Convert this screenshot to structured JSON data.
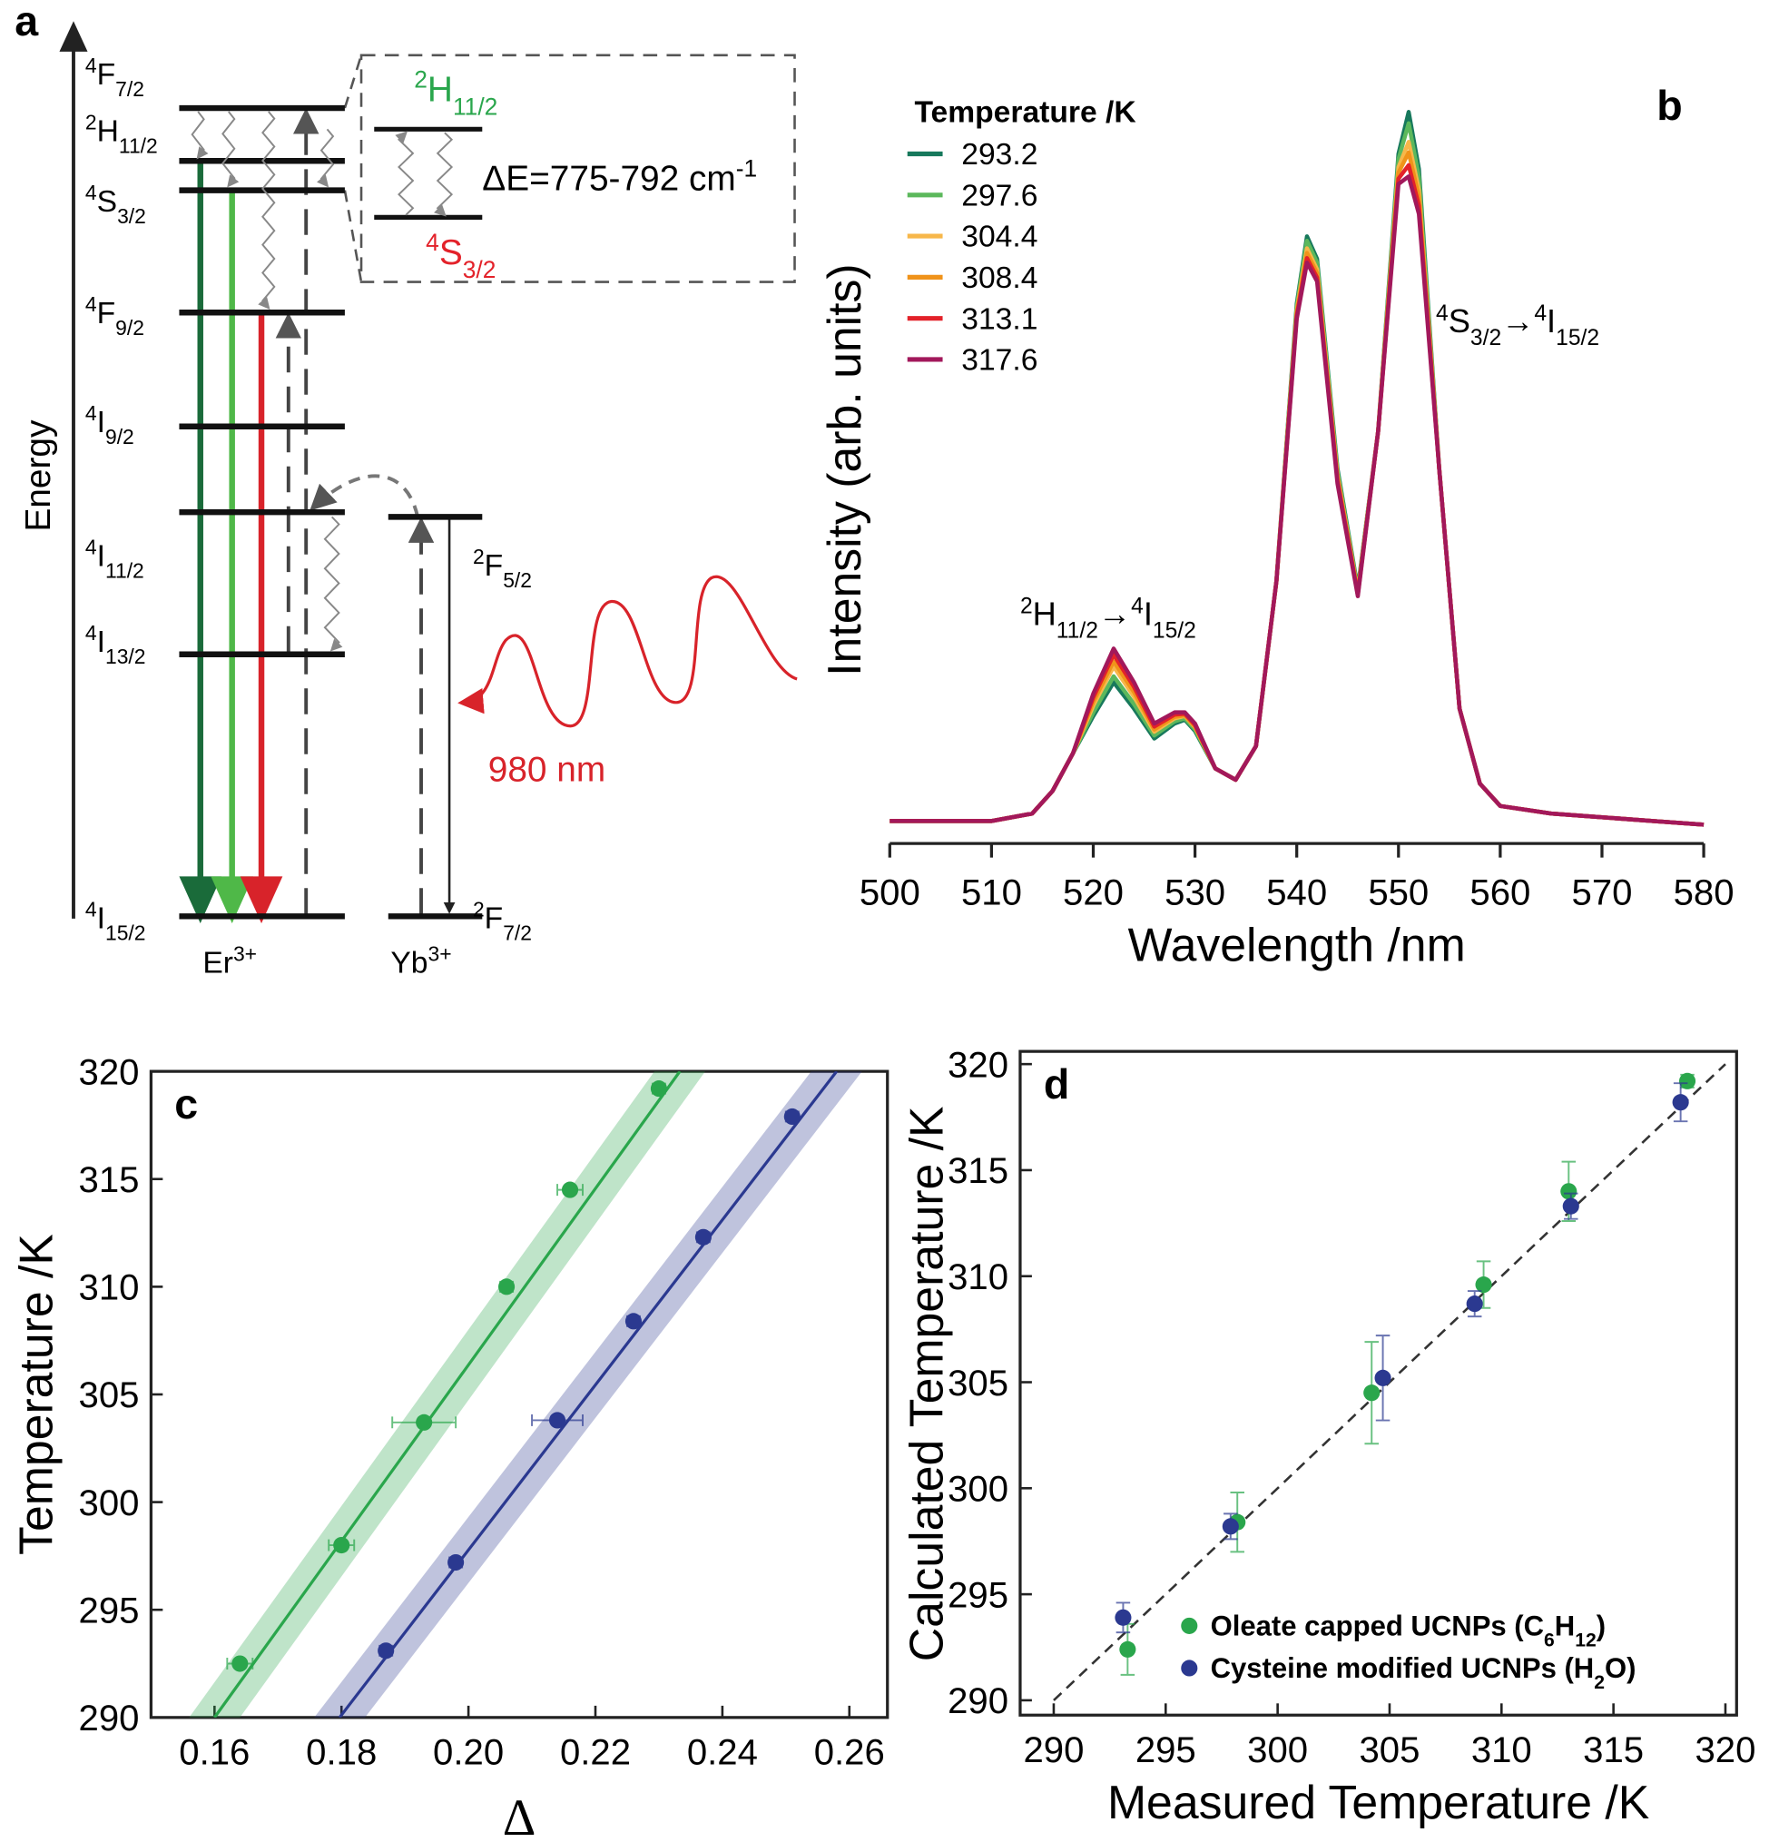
{
  "diagram": {
    "label": "a",
    "axis_label": "Energy",
    "er_levels": [
      [
        {
          "sup": "4"
        },
        {
          "t": "F"
        },
        {
          "sub": "7/2"
        }
      ],
      [
        {
          "sup": "2"
        },
        {
          "t": "H"
        },
        {
          "sub": "11/2"
        }
      ],
      [
        {
          "sup": "4"
        },
        {
          "t": "S"
        },
        {
          "sub": "3/2"
        }
      ],
      [
        {
          "sup": "4"
        },
        {
          "t": "F"
        },
        {
          "sub": "9/2"
        }
      ],
      [
        {
          "sup": "4"
        },
        {
          "t": "I"
        },
        {
          "sub": "9/2"
        }
      ],
      [
        {
          "sup": "4"
        },
        {
          "t": "I"
        },
        {
          "sub": "11/2"
        }
      ],
      [
        {
          "sup": "4"
        },
        {
          "t": "I"
        },
        {
          "sub": "13/2"
        }
      ],
      [
        {
          "sup": "4"
        },
        {
          "t": "I"
        },
        {
          "sub": "15/2"
        }
      ]
    ],
    "yb_levels": [
      [
        {
          "sup": "2"
        },
        {
          "t": "F"
        },
        {
          "sub": "5/2"
        }
      ],
      [
        {
          "sup": "2"
        },
        {
          "t": "F"
        },
        {
          "sub": "7/2"
        }
      ]
    ],
    "er_ion": [
      {
        "t": "Er"
      },
      {
        "sup": "3+"
      }
    ],
    "yb_ion": [
      {
        "t": "Yb"
      },
      {
        "sup": "3+"
      }
    ],
    "inset": {
      "upper": [
        {
          "sup": "2"
        },
        {
          "t": "H"
        },
        {
          "sub": "11/2"
        }
      ],
      "lower": [
        {
          "sup": "4"
        },
        {
          "t": "S"
        },
        {
          "sub": "3/2"
        }
      ],
      "gap": [
        {
          "t": "ΔE=775-792 cm"
        },
        {
          "sup": "-1"
        }
      ]
    },
    "excitation": "980 nm"
  },
  "chart_data": [
    {
      "type": "line",
      "label": "b",
      "xlabel": "Wavelength /nm",
      "ylabel": "Intensity (arb. units)",
      "legend_title": "Temperature /K",
      "annotations": [
        [
          {
            "sup": "2"
          },
          {
            "t": "H"
          },
          {
            "sub": "11/2"
          },
          {
            "t": "→"
          },
          {
            "sup": "4"
          },
          {
            "t": "I"
          },
          {
            "sub": "15/2"
          }
        ],
        [
          {
            "sup": "4"
          },
          {
            "t": "S"
          },
          {
            "sub": "3/2"
          },
          {
            "t": "→"
          },
          {
            "sup": "4"
          },
          {
            "t": "I"
          },
          {
            "sub": "15/2"
          }
        ]
      ],
      "xlim": [
        500,
        580
      ],
      "xticks": [
        500,
        510,
        520,
        530,
        540,
        550,
        560,
        570,
        580
      ],
      "ylim": [
        0,
        100
      ],
      "x": [
        500,
        505,
        510,
        514,
        516,
        518,
        520,
        522,
        524,
        526,
        528,
        529,
        530,
        532,
        534,
        536,
        538,
        540,
        541,
        542,
        544,
        546,
        548,
        550,
        551,
        552,
        554,
        556,
        558,
        560,
        565,
        570,
        575,
        580
      ],
      "series": [
        {
          "name": "293.2",
          "color": "#17795c",
          "values": [
            3,
            3,
            3,
            4,
            7,
            12,
            17,
            21.5,
            18,
            14,
            16,
            16.5,
            15,
            10,
            8.5,
            13,
            35,
            72,
            81,
            78,
            50,
            34,
            55,
            92,
            97.6,
            90,
            50,
            18,
            8,
            5,
            4,
            3.5,
            3,
            2.5
          ]
        },
        {
          "name": "297.6",
          "color": "#5cb85c",
          "values": [
            3,
            3,
            3,
            4,
            7,
            12,
            17.5,
            22.3,
            18.6,
            14.4,
            16.3,
            16.7,
            15.2,
            10,
            8.5,
            13,
            35,
            71.6,
            80.4,
            77.5,
            49.6,
            33.8,
            55,
            91.3,
            96.1,
            88.9,
            50,
            18,
            8,
            5,
            4,
            3.5,
            3,
            2.5
          ]
        },
        {
          "name": "304.4",
          "color": "#f7b74a",
          "values": [
            3,
            3,
            3,
            4,
            7,
            12,
            18.4,
            23.6,
            19.6,
            14.9,
            16.7,
            17,
            15.5,
            10,
            8.5,
            13,
            35,
            71.1,
            79.4,
            76.6,
            49.1,
            33.5,
            55,
            90.2,
            93.6,
            87.2,
            50,
            18,
            8,
            5,
            4,
            3.5,
            3,
            2.5
          ]
        },
        {
          "name": "308.4",
          "color": "#f0931a",
          "values": [
            3,
            3,
            3,
            4,
            7,
            12,
            18.9,
            24.3,
            20.2,
            15.2,
            16.9,
            17.1,
            15.6,
            10,
            8.5,
            13,
            35,
            70.8,
            78.8,
            76.1,
            48.8,
            33.4,
            55,
            89.5,
            92.2,
            86.3,
            50,
            18,
            8,
            5,
            4,
            3.5,
            3,
            2.5
          ]
        },
        {
          "name": "313.1",
          "color": "#e3222a",
          "values": [
            3,
            3,
            3,
            4,
            7,
            12,
            19.5,
            25.2,
            20.9,
            15.6,
            17.2,
            17.3,
            15.8,
            10,
            8.5,
            13,
            35,
            70.4,
            78.1,
            75.5,
            48.4,
            33.2,
            55,
            88.7,
            90.5,
            85.1,
            50,
            18,
            8,
            5,
            4,
            3.5,
            3,
            2.5
          ]
        },
        {
          "name": "317.6",
          "color": "#a2185b",
          "values": [
            3,
            3,
            3,
            4,
            7,
            12,
            20,
            26,
            21.5,
            16,
            17.5,
            17.5,
            16,
            10,
            8.5,
            13,
            35,
            70,
            77.5,
            75,
            48,
            33,
            55,
            88,
            89,
            84,
            50,
            18,
            8,
            5,
            4,
            3.5,
            3,
            2.5
          ]
        }
      ]
    },
    {
      "type": "scatter",
      "label": "c",
      "xlabel": "Δ",
      "ylabel": "Temperature /K",
      "xlim": [
        0.15,
        0.266
      ],
      "xticks": [
        0.16,
        0.18,
        {
          "value": 0.2,
          "label": "0.20"
        },
        0.22,
        0.24,
        0.26
      ],
      "ylim": [
        290,
        320
      ],
      "yticks": [
        290,
        295,
        300,
        305,
        310,
        315,
        320
      ],
      "series": [
        {
          "color": "#2aa64c",
          "x": [
            0.164,
            0.18,
            0.193,
            0.206,
            0.216,
            0.23
          ],
          "y": [
            292.5,
            298,
            303.7,
            310,
            314.5,
            319.2
          ],
          "xerr": [
            0.002,
            0.002,
            0.005,
            0.001,
            0.002,
            0.001
          ],
          "fit": {
            "x": [
              0.16,
              0.2333
            ],
            "y": [
              290,
              320
            ]
          },
          "band": 0.004
        },
        {
          "color": "#2b3990",
          "x": [
            0.187,
            0.198,
            0.214,
            0.226,
            0.237,
            0.251
          ],
          "y": [
            293.1,
            297.2,
            303.8,
            308.4,
            312.3,
            317.9
          ],
          "xerr": [
            0.001,
            0.001,
            0.004,
            0.001,
            0.001,
            0.001
          ],
          "fit": {
            "x": [
              0.1797,
              0.258
            ],
            "y": [
              290,
              320
            ]
          },
          "band": 0.004
        }
      ]
    },
    {
      "type": "scatter",
      "label": "d",
      "xlabel": "Measured Temperature /K",
      "ylabel": "Calculated Temperature /K",
      "xlim": [
        288.5,
        320.5
      ],
      "xticks": [
        290,
        295,
        300,
        305,
        310,
        315,
        320
      ],
      "ylim": [
        289.3,
        320.6
      ],
      "yticks": [
        290,
        295,
        300,
        305,
        310,
        315,
        320
      ],
      "reference_line": {
        "x": [
          290,
          320
        ],
        "y": [
          290,
          320
        ]
      },
      "series": [
        {
          "name": [
            {
              "t": "Oleate capped UCNPs (C"
            },
            {
              "sub": "6"
            },
            {
              "t": "H"
            },
            {
              "sub": "12"
            },
            {
              "t": ")"
            }
          ],
          "color": "#2aa64c",
          "x": [
            293.3,
            298.2,
            304.2,
            309.2,
            313,
            318.3
          ],
          "y": [
            292.4,
            298.4,
            304.5,
            309.6,
            314,
            319.2
          ],
          "yerr": [
            1.2,
            1.4,
            2.4,
            1.1,
            1.4,
            0.3
          ]
        },
        {
          "name": [
            {
              "t": "Cysteine modified UCNPs (H"
            },
            {
              "sub": "2"
            },
            {
              "t": "O)"
            }
          ],
          "color": "#2b3990",
          "x": [
            293.1,
            297.9,
            304.7,
            308.8,
            313.1,
            318
          ],
          "y": [
            293.9,
            298.2,
            305.2,
            308.7,
            313.3,
            318.2
          ],
          "yerr": [
            0.7,
            0.6,
            2,
            0.6,
            0.6,
            0.9
          ]
        }
      ]
    }
  ]
}
